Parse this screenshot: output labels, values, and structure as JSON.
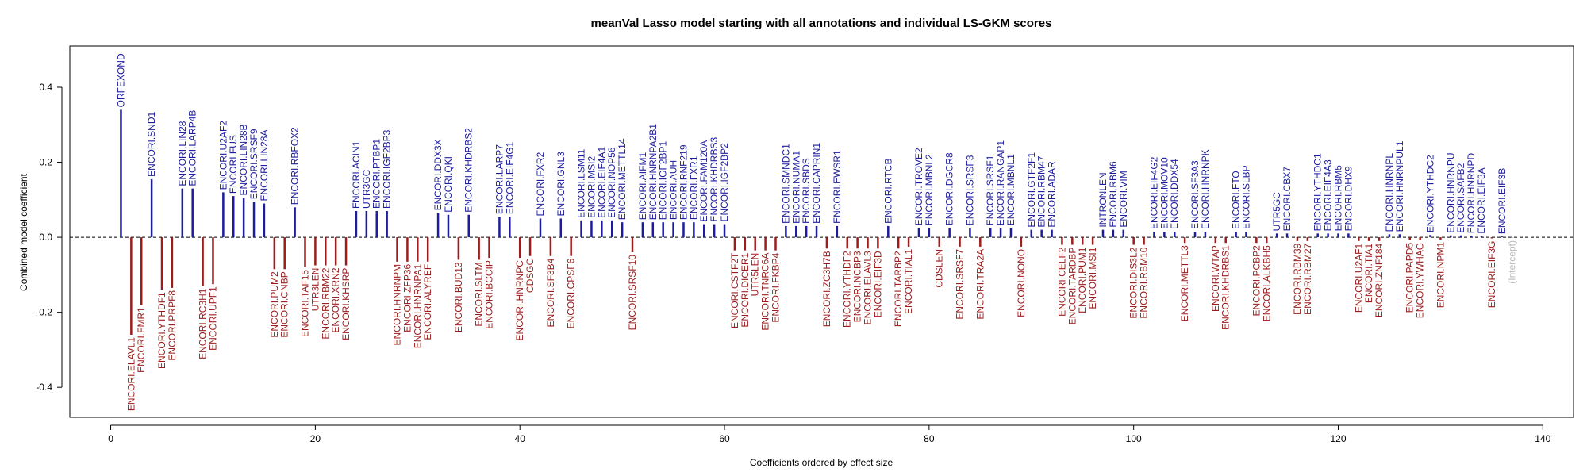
{
  "chart_data": {
    "type": "bar",
    "title": "meanVal Lasso model starting with all annotations and individual LS-GKM scores",
    "xlabel": "Coefficients ordered by effect size",
    "ylabel": "Combined model coefficient",
    "xlim": [
      -4,
      143
    ],
    "ylim": [
      -0.48,
      0.51
    ],
    "xticks": [
      0,
      20,
      40,
      60,
      80,
      100,
      120,
      140
    ],
    "yticks": [
      -0.4,
      -0.2,
      0.0,
      0.2,
      0.4
    ],
    "xtick_labels": [
      "0",
      "20",
      "40",
      "60",
      "80",
      "100",
      "120",
      "140"
    ],
    "ytick_labels": [
      "-0.4",
      "-0.2",
      "0.0",
      "0.2",
      "0.4"
    ],
    "colors": {
      "positive": "#1c1c9c",
      "negative": "#9b1c1c",
      "intercept": "#bbbbbb"
    },
    "points": [
      {
        "x": 1,
        "label": "ORFEXOND",
        "value": 0.34
      },
      {
        "x": 2,
        "label": "ENCORI.ELAVL1",
        "value": -0.26
      },
      {
        "x": 3,
        "label": "ENCORI.FMR1",
        "value": -0.18
      },
      {
        "x": 4,
        "label": "ENCORI.SND1",
        "value": 0.155
      },
      {
        "x": 5,
        "label": "ENCORI.YTHDF1",
        "value": -0.14
      },
      {
        "x": 6,
        "label": "ENCORI.PRPF8",
        "value": -0.135
      },
      {
        "x": 7,
        "label": "ENCORI.LIN28",
        "value": 0.13
      },
      {
        "x": 8,
        "label": "ENCORI.LARP4B",
        "value": 0.13
      },
      {
        "x": 9,
        "label": "ENCORI.RC3H1",
        "value": -0.13
      },
      {
        "x": 10,
        "label": "ENCORI.UPF1",
        "value": -0.125
      },
      {
        "x": 11,
        "label": "ENCORI.U2AF2",
        "value": 0.12
      },
      {
        "x": 12,
        "label": "ENCORI.FUS",
        "value": 0.11
      },
      {
        "x": 13,
        "label": "ENCORI.LIN28B",
        "value": 0.105
      },
      {
        "x": 14,
        "label": "ENCORI.SRSF9",
        "value": 0.095
      },
      {
        "x": 15,
        "label": "ENCORI.LIN28A",
        "value": 0.09
      },
      {
        "x": 16,
        "label": "ENCORI.PUM2",
        "value": -0.085
      },
      {
        "x": 17,
        "label": "ENCORI.CNBP",
        "value": -0.085
      },
      {
        "x": 18,
        "label": "ENCORI.RBFOX2",
        "value": 0.08
      },
      {
        "x": 19,
        "label": "ENCORI.TAF15",
        "value": -0.08
      },
      {
        "x": 20,
        "label": "UTR3LEN",
        "value": -0.075
      },
      {
        "x": 21,
        "label": "ENCORI.RBM22",
        "value": -0.075
      },
      {
        "x": 22,
        "label": "ENCORI.XRN2",
        "value": -0.075
      },
      {
        "x": 23,
        "label": "ENCORI.KHSRP",
        "value": -0.075
      },
      {
        "x": 24,
        "label": "ENCORI.ACIN1",
        "value": 0.07
      },
      {
        "x": 25,
        "label": "UTR3GC",
        "value": 0.07
      },
      {
        "x": 26,
        "label": "ENCORI.PTBP1",
        "value": 0.07
      },
      {
        "x": 27,
        "label": "ENCORI.IGF2BP3",
        "value": 0.07
      },
      {
        "x": 28,
        "label": "ENCORI.HNRNPM",
        "value": -0.065
      },
      {
        "x": 29,
        "label": "ENCORI.ZFP36",
        "value": -0.065
      },
      {
        "x": 30,
        "label": "ENCORI.HNRNPA1",
        "value": -0.065
      },
      {
        "x": 31,
        "label": "ENCORI.ALYREF",
        "value": -0.065
      },
      {
        "x": 32,
        "label": "ENCORI.DDX3X",
        "value": 0.065
      },
      {
        "x": 33,
        "label": "ENCORI.QKI",
        "value": 0.06
      },
      {
        "x": 34,
        "label": "ENCORI.BUD13",
        "value": -0.06
      },
      {
        "x": 35,
        "label": "ENCORI.KHDRBS2",
        "value": 0.06
      },
      {
        "x": 36,
        "label": "ENCORI.SLTM",
        "value": -0.06
      },
      {
        "x": 37,
        "label": "ENCORI.BCCIP",
        "value": -0.055
      },
      {
        "x": 38,
        "label": "ENCORI.LARP7",
        "value": 0.055
      },
      {
        "x": 39,
        "label": "ENCORI.EIF4G1",
        "value": 0.055
      },
      {
        "x": 40,
        "label": "ENCORI.HNRNPC",
        "value": -0.055
      },
      {
        "x": 41,
        "label": "CDSGC",
        "value": -0.05
      },
      {
        "x": 42,
        "label": "ENCORI.FXR2",
        "value": 0.05
      },
      {
        "x": 43,
        "label": "ENCORI.SF3B4",
        "value": -0.05
      },
      {
        "x": 44,
        "label": "ENCORI.GNL3",
        "value": 0.05
      },
      {
        "x": 45,
        "label": "ENCORI.CPSF6",
        "value": -0.05
      },
      {
        "x": 46,
        "label": "ENCORI.LSM11",
        "value": 0.045
      },
      {
        "x": 47,
        "label": "ENCORI.MSI2",
        "value": 0.045
      },
      {
        "x": 48,
        "label": "ENCORI.EIF4A1",
        "value": 0.045
      },
      {
        "x": 49,
        "label": "ENCORI.NOP56",
        "value": 0.045
      },
      {
        "x": 50,
        "label": "ENCORI.METTL14",
        "value": 0.04
      },
      {
        "x": 51,
        "label": "ENCORI.SRSF10",
        "value": -0.04
      },
      {
        "x": 52,
        "label": "ENCORI.AIFM1",
        "value": 0.04
      },
      {
        "x": 53,
        "label": "ENCORI.HNRNPA2B1",
        "value": 0.04
      },
      {
        "x": 54,
        "label": "ENCORI.IGF2BP1",
        "value": 0.04
      },
      {
        "x": 55,
        "label": "ENCORI.AUH",
        "value": 0.04
      },
      {
        "x": 56,
        "label": "ENCORI.RNF219",
        "value": 0.04
      },
      {
        "x": 57,
        "label": "ENCORI.FXR1",
        "value": 0.04
      },
      {
        "x": 58,
        "label": "ENCORI.FAM120A",
        "value": 0.035
      },
      {
        "x": 59,
        "label": "ENCORI.KHDRBS3",
        "value": 0.035
      },
      {
        "x": 60,
        "label": "ENCORI.IGF2BP2",
        "value": 0.035
      },
      {
        "x": 61,
        "label": "ENCORI.CSTF2T",
        "value": -0.035
      },
      {
        "x": 62,
        "label": "ENCORI.DICER1",
        "value": -0.035
      },
      {
        "x": 63,
        "label": "UTR5LEN",
        "value": -0.035
      },
      {
        "x": 64,
        "label": "ENCORI.TNRC6A",
        "value": -0.035
      },
      {
        "x": 65,
        "label": "ENCORI.FKBP4",
        "value": -0.035
      },
      {
        "x": 66,
        "label": "ENCORI.SMNDC1",
        "value": 0.03
      },
      {
        "x": 67,
        "label": "ENCORI.NUMA1",
        "value": 0.03
      },
      {
        "x": 68,
        "label": "ENCORI.SBDS",
        "value": 0.03
      },
      {
        "x": 69,
        "label": "ENCORI.CAPRIN1",
        "value": 0.03
      },
      {
        "x": 70,
        "label": "ENCORI.ZC3H7B",
        "value": -0.03
      },
      {
        "x": 71,
        "label": "ENCORI.EWSR1",
        "value": 0.03
      },
      {
        "x": 72,
        "label": "ENCORI.YTHDF2",
        "value": -0.03
      },
      {
        "x": 73,
        "label": "ENCORI.NCBP3",
        "value": -0.03
      },
      {
        "x": 74,
        "label": "ENCORI.ELAVL3",
        "value": -0.03
      },
      {
        "x": 75,
        "label": "ENCORI.EIF3D",
        "value": -0.03
      },
      {
        "x": 76,
        "label": "ENCORI.RTCB",
        "value": 0.03
      },
      {
        "x": 77,
        "label": "ENCORI.TARBP2",
        "value": -0.03
      },
      {
        "x": 78,
        "label": "ENCORI.TIAL1",
        "value": -0.025
      },
      {
        "x": 79,
        "label": "ENCORI.TROVE2",
        "value": 0.025
      },
      {
        "x": 80,
        "label": "ENCORI.MBNL2",
        "value": 0.025
      },
      {
        "x": 81,
        "label": "CDSLEN",
        "value": -0.025
      },
      {
        "x": 82,
        "label": "ENCORI.DGCR8",
        "value": 0.025
      },
      {
        "x": 83,
        "label": "ENCORI.SRSF7",
        "value": -0.025
      },
      {
        "x": 84,
        "label": "ENCORI.SRSF3",
        "value": 0.025
      },
      {
        "x": 85,
        "label": "ENCORI.TRA2A",
        "value": -0.025
      },
      {
        "x": 86,
        "label": "ENCORI.SRSF1",
        "value": 0.025
      },
      {
        "x": 87,
        "label": "ENCORI.RANGAP1",
        "value": 0.025
      },
      {
        "x": 88,
        "label": "ENCORI.MBNL1",
        "value": 0.025
      },
      {
        "x": 89,
        "label": "ENCORI.NONO",
        "value": -0.025
      },
      {
        "x": 90,
        "label": "ENCORI.GTF2F1",
        "value": 0.02
      },
      {
        "x": 91,
        "label": "ENCORI.RBM47",
        "value": 0.02
      },
      {
        "x": 92,
        "label": "ENCORI.ADAR",
        "value": 0.02
      },
      {
        "x": 93,
        "label": "ENCORI.CELF2",
        "value": -0.02
      },
      {
        "x": 94,
        "label": "ENCORI.TARDBP",
        "value": -0.02
      },
      {
        "x": 95,
        "label": "ENCORI.PUM1",
        "value": -0.02
      },
      {
        "x": 96,
        "label": "ENCORI.MSI1",
        "value": -0.02
      },
      {
        "x": 97,
        "label": "INTRONLEN",
        "value": 0.02
      },
      {
        "x": 98,
        "label": "ENCORI.RBM6",
        "value": 0.02
      },
      {
        "x": 99,
        "label": "ENCORI.VIM",
        "value": 0.02
      },
      {
        "x": 100,
        "label": "ENCORI.DIS3L2",
        "value": -0.02
      },
      {
        "x": 101,
        "label": "ENCORI.RBM10",
        "value": -0.02
      },
      {
        "x": 102,
        "label": "ENCORI.EIF4G2",
        "value": 0.015
      },
      {
        "x": 103,
        "label": "ENCORI.MOV10",
        "value": 0.015
      },
      {
        "x": 104,
        "label": "ENCORI.DDX54",
        "value": 0.015
      },
      {
        "x": 105,
        "label": "ENCORI.METTL3",
        "value": -0.015
      },
      {
        "x": 106,
        "label": "ENCORI.SF3A3",
        "value": 0.015
      },
      {
        "x": 107,
        "label": "ENCORI.HNRNPK",
        "value": 0.015
      },
      {
        "x": 108,
        "label": "ENCORI.WTAP",
        "value": -0.015
      },
      {
        "x": 109,
        "label": "ENCORI.KHDRBS1",
        "value": -0.015
      },
      {
        "x": 110,
        "label": "ENCORI.FTO",
        "value": 0.015
      },
      {
        "x": 111,
        "label": "ENCORI.SLBP",
        "value": 0.015
      },
      {
        "x": 112,
        "label": "ENCORI.PCBP2",
        "value": -0.015
      },
      {
        "x": 113,
        "label": "ENCORI.ALKBH5",
        "value": -0.015
      },
      {
        "x": 114,
        "label": "UTR5GC",
        "value": 0.01
      },
      {
        "x": 115,
        "label": "ENCORI.CBX7",
        "value": 0.01
      },
      {
        "x": 116,
        "label": "ENCORI.RBM39",
        "value": -0.01
      },
      {
        "x": 117,
        "label": "ENCORI.RBM27",
        "value": -0.01
      },
      {
        "x": 118,
        "label": "ENCORI.YTHDC1",
        "value": 0.01
      },
      {
        "x": 119,
        "label": "ENCORI.EIF4A3",
        "value": 0.01
      },
      {
        "x": 120,
        "label": "ENCORI.RBM5",
        "value": 0.01
      },
      {
        "x": 121,
        "label": "ENCORI.DHX9",
        "value": 0.01
      },
      {
        "x": 122,
        "label": "ENCORI.U2AF1",
        "value": -0.01
      },
      {
        "x": 123,
        "label": "ENCORI.TIA1",
        "value": -0.01
      },
      {
        "x": 124,
        "label": "ENCORI.ZNF184",
        "value": -0.01
      },
      {
        "x": 125,
        "label": "ENCORI.HNRNPL",
        "value": 0.008
      },
      {
        "x": 126,
        "label": "ENCORI.HNRNPUL1",
        "value": 0.008
      },
      {
        "x": 127,
        "label": "ENCORI.PAPD5",
        "value": -0.008
      },
      {
        "x": 128,
        "label": "ENCORI.YWHAG",
        "value": -0.008
      },
      {
        "x": 129,
        "label": "ENCORI.YTHDC2",
        "value": 0.006
      },
      {
        "x": 130,
        "label": "ENCORI.NPM1",
        "value": -0.006
      },
      {
        "x": 131,
        "label": "ENCORI.HNRNPU",
        "value": 0.005
      },
      {
        "x": 132,
        "label": "ENCORI.SAFB2",
        "value": 0.005
      },
      {
        "x": 133,
        "label": "ENCORI.HNRNPD",
        "value": 0.004
      },
      {
        "x": 134,
        "label": "ENCORI.EIF3A",
        "value": 0.003
      },
      {
        "x": 135,
        "label": "ENCORI.EIF3G",
        "value": -0.003
      },
      {
        "x": 136,
        "label": "ENCORI.EIF3B",
        "value": 0.002
      },
      {
        "x": 137,
        "label": "(Intercept)",
        "value": -0.002,
        "intercept": true
      }
    ]
  }
}
